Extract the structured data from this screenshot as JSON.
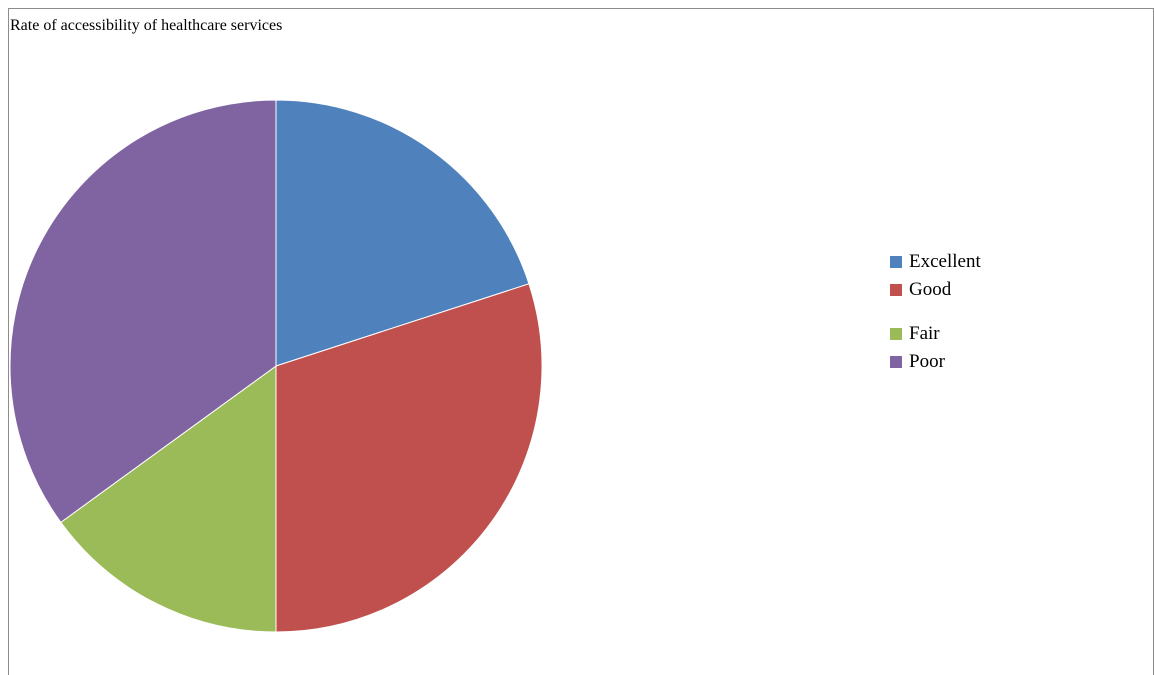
{
  "chart_data": {
    "type": "pie",
    "title": "Rate  of accessibility of healthcare services",
    "categories": [
      "Excellent",
      "Good",
      "Fair",
      "Poor"
    ],
    "values": [
      20,
      30,
      15,
      35
    ],
    "colors": [
      "#4f81bd",
      "#c0504d",
      "#9bbb59",
      "#8064a2"
    ],
    "legend_position": "right"
  }
}
